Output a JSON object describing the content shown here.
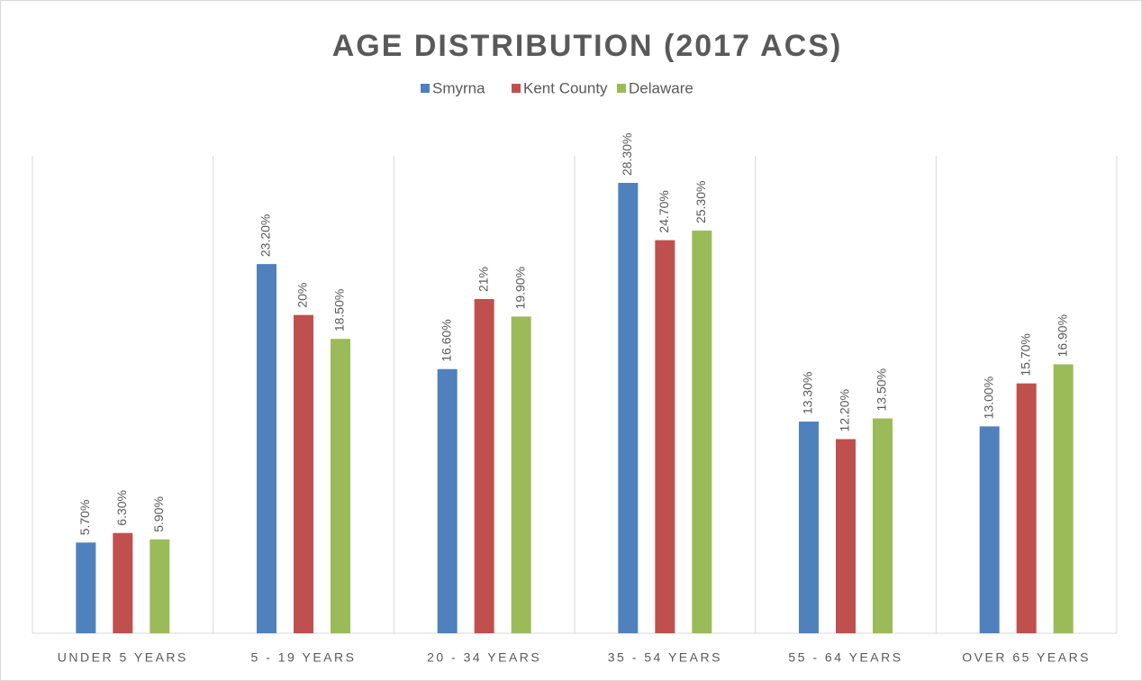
{
  "chart_data": {
    "type": "bar",
    "title": "AGE DISTRIBUTION (2017 ACS)",
    "categories": [
      "UNDER 5 YEARS",
      "5 - 19 YEARS",
      "20 - 34 YEARS",
      "35 - 54 YEARS",
      "55 - 64 YEARS",
      "OVER 65 YEARS"
    ],
    "series": [
      {
        "name": "Smyrna",
        "color": "#4f81bd",
        "values": [
          5.7,
          23.2,
          16.6,
          28.3,
          13.3,
          13.0
        ],
        "value_labels": [
          "5.70%",
          "23.20%",
          "16.60%",
          "28.30%",
          "13.30%",
          "13.00%"
        ]
      },
      {
        "name": "Kent County",
        "color": "#c0504d",
        "values": [
          6.3,
          20,
          21,
          24.7,
          12.2,
          15.7
        ],
        "value_labels": [
          "6.30%",
          "20%",
          "21%",
          "24.70%",
          "12.20%",
          "15.70%"
        ]
      },
      {
        "name": "Delaware",
        "color": "#9bbb59",
        "values": [
          5.9,
          18.5,
          19.9,
          25.3,
          13.5,
          16.9
        ],
        "value_labels": [
          "5.90%",
          "18.50%",
          "19.90%",
          "25.30%",
          "13.50%",
          "16.90%"
        ]
      }
    ],
    "ylim": [
      0,
      30
    ],
    "legend": "top"
  }
}
